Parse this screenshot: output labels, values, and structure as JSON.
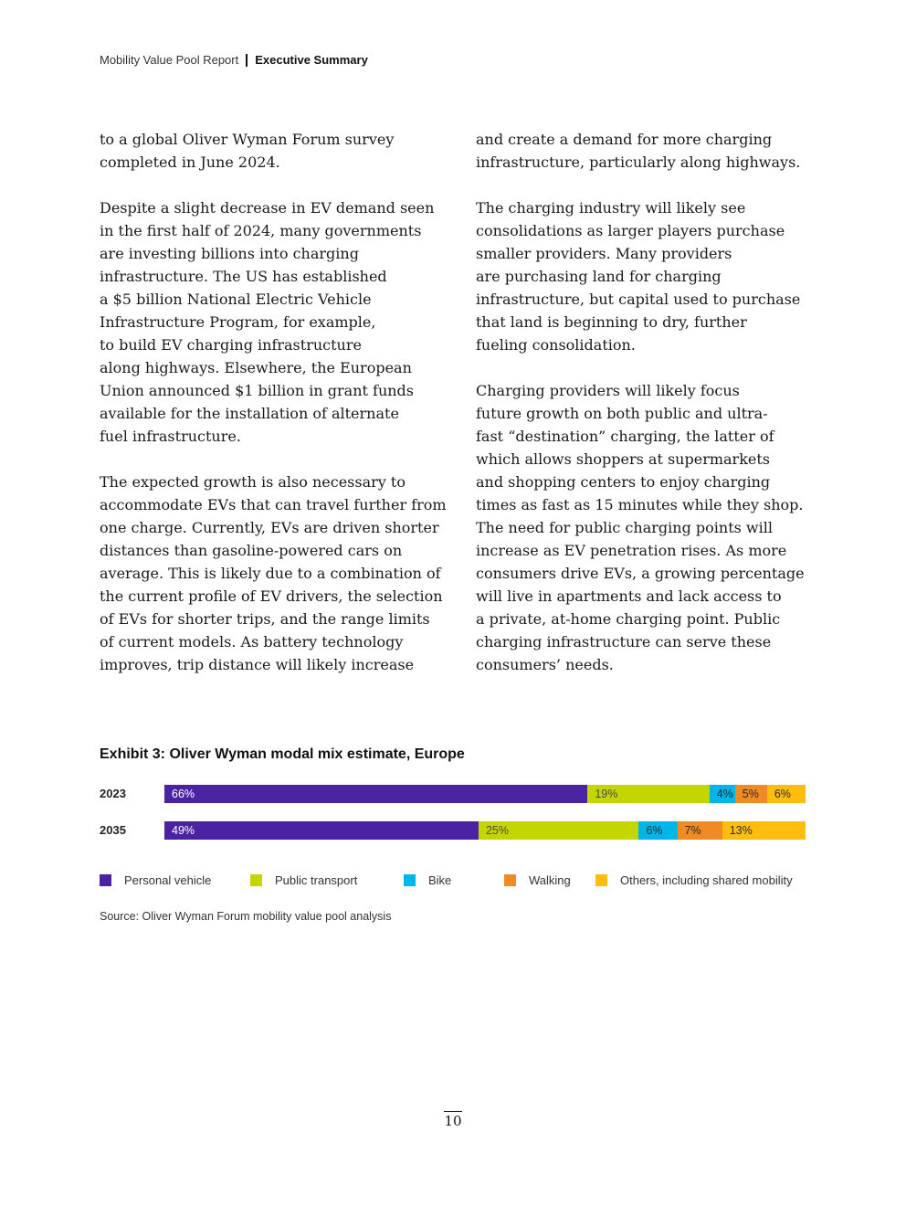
{
  "header": {
    "report": "Mobility Value Pool Report",
    "section": "Executive Summary"
  },
  "body": {
    "left": [
      [
        "to a global Oliver Wyman Forum survey",
        "completed in June 2024."
      ],
      [
        "Despite a slight decrease in EV demand seen",
        "in the first half of 2024, many governments",
        "are investing billions into charging",
        "infrastructure. The US has established",
        "a $5 billion National Electric Vehicle",
        "Infrastructure Program, for example,",
        "to build EV charging infrastructure",
        "along highways. Elsewhere, the European",
        "Union announced $1 billion in grant funds",
        "available for the installation of alternate",
        "fuel infrastructure."
      ],
      [
        "The expected growth is also necessary to",
        "accommodate EVs that can travel further from",
        "one charge. Currently, EVs are driven shorter",
        "distances than gasoline-powered cars on",
        "average. This is likely due to a combination of",
        "the current profile of EV drivers, the selection",
        "of EVs for shorter trips, and the range limits",
        "of current models. As battery technology",
        "improves, trip distance will likely increase"
      ]
    ],
    "right": [
      [
        "and create a demand for more charging",
        "infrastructure, particularly along highways."
      ],
      [
        "The charging industry will likely see",
        "consolidations as larger players purchase",
        "smaller providers. Many providers",
        "are purchasing land for charging",
        "infrastructure, but capital used to purchase",
        "that land is beginning to dry, further",
        "fueling consolidation."
      ],
      [
        "Charging providers will likely focus",
        "future growth on both public and ultra-",
        "fast “destination” charging, the latter of",
        "which allows shoppers at supermarkets",
        "and shopping centers to enjoy charging",
        "times as fast as 15 minutes while they shop.",
        "The need for public charging points will",
        "increase as EV penetration rises. As more",
        "consumers drive EVs, a growing percentage",
        "will live in apartments and lack access to",
        "a private, at-home charging point. Public",
        "charging infrastructure can serve these",
        "consumers’ needs."
      ]
    ]
  },
  "exhibit": {
    "title": "Exhibit 3: Oliver Wyman modal mix estimate, Europe",
    "source": "Source: Oliver Wyman Forum mobility value pool analysis"
  },
  "chart_data": {
    "type": "bar",
    "orientation": "horizontal",
    "stacked": true,
    "title": "Exhibit 3: Oliver Wyman modal mix estimate, Europe",
    "categories": [
      "2023",
      "2035"
    ],
    "unit": "%",
    "series": [
      {
        "name": "Personal vehicle",
        "color": "#4b22a0",
        "text_color": "#ffffff",
        "values": [
          66,
          49
        ]
      },
      {
        "name": "Public transport",
        "color": "#c4d600",
        "text_color": "#4a4a4a",
        "values": [
          19,
          25
        ]
      },
      {
        "name": "Bike",
        "color": "#00b6e8",
        "text_color": "#2a2a2a",
        "values": [
          4,
          6
        ]
      },
      {
        "name": "Walking",
        "color": "#f08a24",
        "text_color": "#2a2a2a",
        "values": [
          5,
          7
        ]
      },
      {
        "name": "Others, including shared mobility",
        "color": "#ffbe0f",
        "text_color": "#2a2a2a",
        "values": [
          6,
          13
        ]
      }
    ],
    "legend_position": "bottom",
    "grid": false
  },
  "page_number": "10"
}
